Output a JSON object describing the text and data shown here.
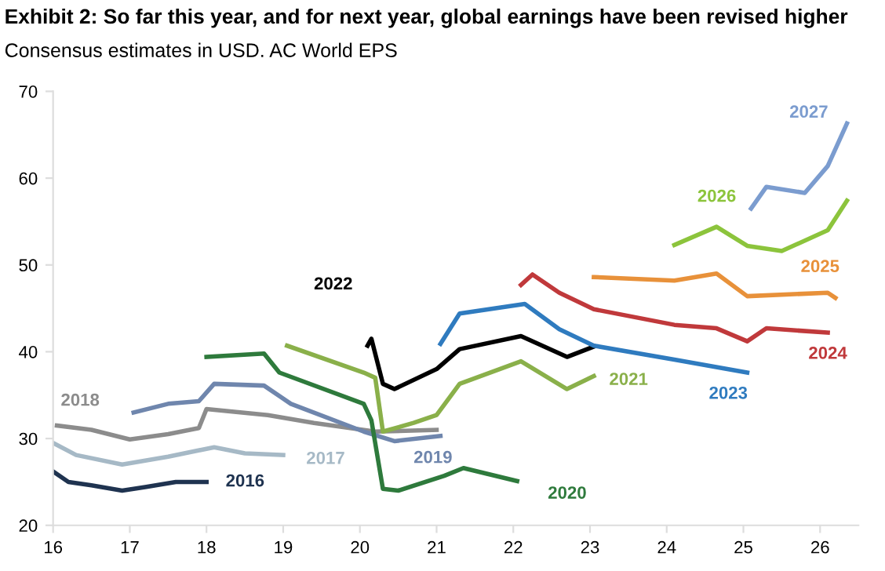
{
  "chart_data": {
    "type": "line",
    "title": "Exhibit 2: So far this year, and for next year, global earnings have been revised higher",
    "subtitle": "Consensus estimates in USD. AC World EPS",
    "xlim": [
      16,
      26.5
    ],
    "xticks": [
      16,
      17,
      18,
      19,
      20,
      21,
      22,
      23,
      24,
      25,
      26
    ],
    "ylim": [
      20,
      70
    ],
    "yticks": [
      20,
      30,
      40,
      50,
      60,
      70
    ],
    "grid": false,
    "legend": false,
    "series": [
      {
        "name": "2016",
        "color": "#1f3350",
        "x": [
          16.0,
          16.2,
          16.5,
          16.9,
          17.2,
          17.6,
          18.0
        ],
        "values": [
          26.2,
          25.0,
          24.6,
          24.0,
          24.4,
          25.0,
          25.0
        ]
      },
      {
        "name": "2017",
        "color": "#a6b9c6",
        "x": [
          16.0,
          16.3,
          16.9,
          17.5,
          18.1,
          18.5,
          19.0
        ],
        "values": [
          29.5,
          28.1,
          27.0,
          27.9,
          29.0,
          28.3,
          28.1
        ]
      },
      {
        "name": "2018",
        "color": "#8c8c8c",
        "x": [
          16.05,
          16.5,
          17.0,
          17.5,
          17.9,
          18.0,
          18.8,
          19.4,
          20.2,
          21.0
        ],
        "values": [
          31.5,
          31.0,
          29.9,
          30.5,
          31.2,
          33.4,
          32.7,
          31.8,
          30.8,
          31.0
        ]
      },
      {
        "name": "2019",
        "color": "#6f86ad",
        "x": [
          17.05,
          17.5,
          17.9,
          18.1,
          18.75,
          19.1,
          20.05,
          20.45,
          21.05
        ],
        "values": [
          33.0,
          34.0,
          34.3,
          36.3,
          36.1,
          34.0,
          30.8,
          29.7,
          30.3
        ]
      },
      {
        "name": "2020",
        "color": "#2e7a3c",
        "x": [
          18.0,
          18.75,
          18.95,
          20.05,
          20.15,
          20.3,
          20.5,
          21.1,
          21.35,
          22.05
        ],
        "values": [
          39.4,
          39.8,
          37.6,
          34.0,
          32.1,
          24.2,
          24.0,
          25.7,
          26.6,
          25.1
        ]
      },
      {
        "name": "2021",
        "color": "#8ab04a",
        "x": [
          19.05,
          20.05,
          20.2,
          20.3,
          20.7,
          21.0,
          21.3,
          22.1,
          22.7,
          23.05
        ],
        "values": [
          40.7,
          37.6,
          37.0,
          30.8,
          31.8,
          32.7,
          36.3,
          38.9,
          35.7,
          37.2
        ]
      },
      {
        "name": "2022",
        "color": "#000000",
        "x": [
          20.1,
          20.15,
          20.3,
          20.45,
          21.0,
          21.3,
          22.1,
          22.7,
          23.05
        ],
        "values": [
          40.7,
          41.5,
          36.3,
          35.7,
          38.0,
          40.3,
          41.8,
          39.4,
          40.6
        ]
      },
      {
        "name": "2023",
        "color": "#2f7bbf",
        "x": [
          21.05,
          21.3,
          22.15,
          22.6,
          23.05,
          24.1,
          25.05
        ],
        "values": [
          40.9,
          44.4,
          45.5,
          42.6,
          40.7,
          39.1,
          37.6
        ]
      },
      {
        "name": "2024",
        "color": "#c0393b",
        "x": [
          22.1,
          22.25,
          22.6,
          23.05,
          24.1,
          24.65,
          25.05,
          25.3,
          26.1
        ],
        "values": [
          47.7,
          48.9,
          46.8,
          44.9,
          43.1,
          42.7,
          41.2,
          42.7,
          42.2
        ]
      },
      {
        "name": "2025",
        "color": "#e8913a",
        "x": [
          23.05,
          24.1,
          24.65,
          25.05,
          26.1,
          26.2
        ],
        "values": [
          48.6,
          48.2,
          49.0,
          46.4,
          46.8,
          46.2
        ]
      },
      {
        "name": "2026",
        "color": "#8cc43c",
        "x": [
          24.1,
          24.65,
          25.05,
          25.5,
          26.1,
          26.35
        ],
        "values": [
          52.3,
          54.4,
          52.2,
          51.6,
          54.0,
          57.4
        ]
      },
      {
        "name": "2027",
        "color": "#7b9ccf",
        "x": [
          25.1,
          25.3,
          25.8,
          26.1,
          26.35
        ],
        "values": [
          56.5,
          59.0,
          58.3,
          61.4,
          66.3
        ]
      }
    ]
  }
}
